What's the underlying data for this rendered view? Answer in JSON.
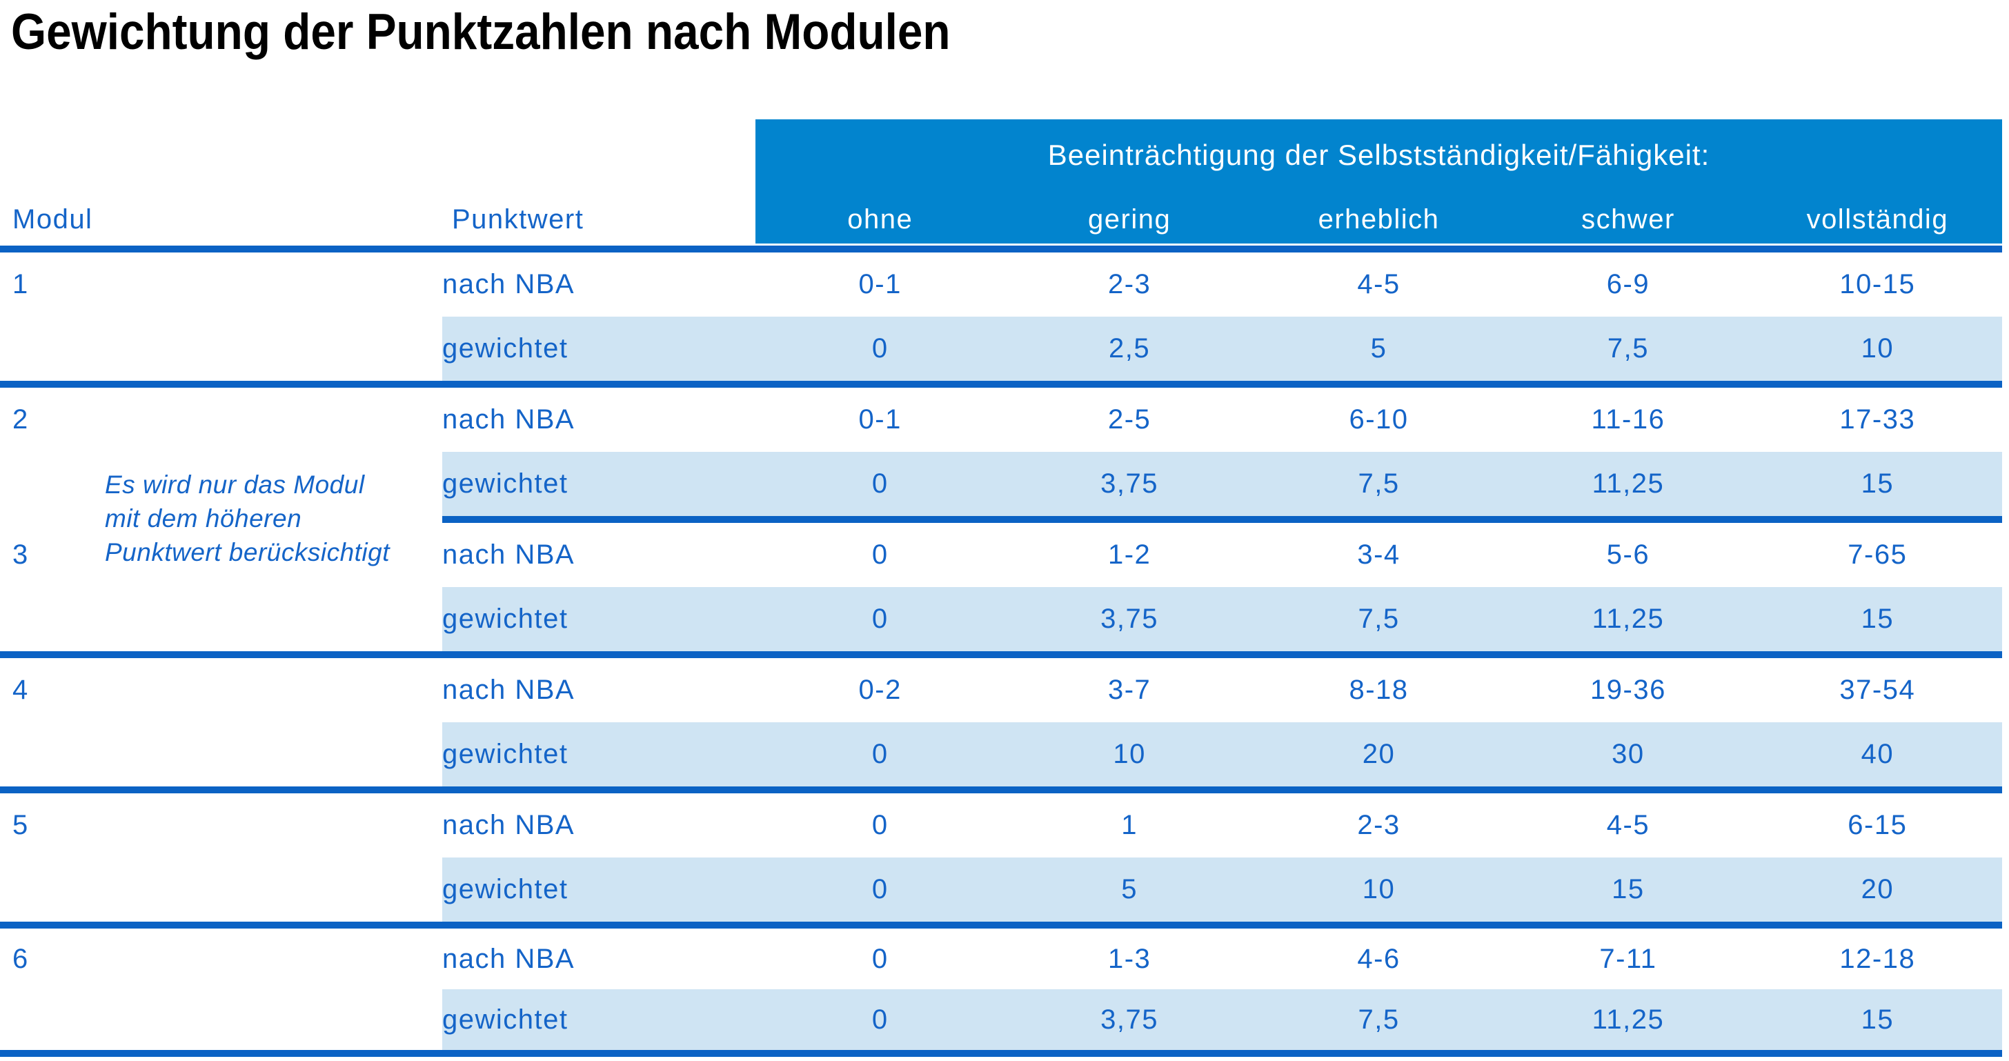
{
  "title": "Gewichtung der Punktzahlen nach Modulen",
  "colors": {
    "header_band": "#0284CE",
    "rule": "#0B62C4",
    "weighted_row_bg": "#CFE4F3",
    "table_text": "#1464C8",
    "header_text": "#FFFFFF",
    "title_text": "#000000"
  },
  "table": {
    "header": {
      "span_label": "Beeinträchtigung der Selbstständigkeit/Fähigkeit:",
      "col_modul": "Modul",
      "col_punktwert": "Punktwert",
      "severity_levels": [
        "ohne",
        "gering",
        "erheblich",
        "schwer",
        "vollständig"
      ]
    },
    "row_labels": {
      "nba": "nach NBA",
      "weighted": "gewichtet"
    },
    "note": {
      "lines": [
        "Es wird nur das Modul",
        "mit dem höheren",
        "Punktwert berücksichtigt"
      ]
    },
    "modules": [
      {
        "id": "1",
        "nba": [
          "0-1",
          "2-3",
          "4-5",
          "6-9",
          "10-15"
        ],
        "weighted": [
          "0",
          "2,5",
          "5",
          "7,5",
          "10"
        ]
      },
      {
        "id": "2",
        "nba": [
          "0-1",
          "2-5",
          "6-10",
          "11-16",
          "17-33"
        ],
        "weighted": [
          "0",
          "3,75",
          "7,5",
          "11,25",
          "15"
        ]
      },
      {
        "id": "3",
        "nba": [
          "0",
          "1-2",
          "3-4",
          "5-6",
          "7-65"
        ],
        "weighted": [
          "0",
          "3,75",
          "7,5",
          "11,25",
          "15"
        ]
      },
      {
        "id": "4",
        "nba": [
          "0-2",
          "3-7",
          "8-18",
          "19-36",
          "37-54"
        ],
        "weighted": [
          "0",
          "10",
          "20",
          "30",
          "40"
        ]
      },
      {
        "id": "5",
        "nba": [
          "0",
          "1",
          "2-3",
          "4-5",
          "6-15"
        ],
        "weighted": [
          "0",
          "5",
          "10",
          "15",
          "20"
        ]
      },
      {
        "id": "6",
        "nba": [
          "0",
          "1-3",
          "4-6",
          "7-11",
          "12-18"
        ],
        "weighted": [
          "0",
          "3,75",
          "7,5",
          "11,25",
          "15"
        ]
      }
    ]
  }
}
